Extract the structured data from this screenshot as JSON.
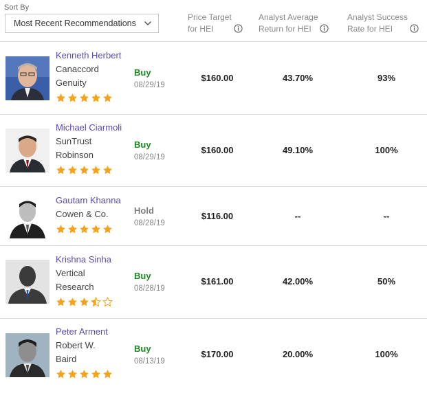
{
  "sort": {
    "label": "Sort By",
    "selected": "Most Recent Recommendations"
  },
  "columns": {
    "price_target": "Price Target for HEI",
    "avg_return": "Analyst Average Return for HEI",
    "success_rate": "Analyst Success Rate for HEI"
  },
  "icons": {
    "info": "info-circle-icon",
    "dropdown": "chevron-down-icon",
    "star": "star-icon"
  },
  "colors": {
    "name_link": "#5b4bb0",
    "buy": "#1d8a22",
    "hold": "#7d7d7d",
    "star": "#f4a31a"
  },
  "analysts": [
    {
      "name": "Kenneth Herbert",
      "firm_line1": "Canaccord",
      "firm_line2": "Genuity",
      "rating": "Buy",
      "date": "08/29/19",
      "price_target": "$160.00",
      "avg_return": "43.70%",
      "success_rate": "93%",
      "stars": 5
    },
    {
      "name": "Michael Ciarmoli",
      "firm_line1": "SunTrust",
      "firm_line2": "Robinson",
      "rating": "Buy",
      "date": "08/29/19",
      "price_target": "$160.00",
      "avg_return": "49.10%",
      "success_rate": "100%",
      "stars": 5
    },
    {
      "name": "Gautam Khanna",
      "firm_line1": "Cowen & Co.",
      "firm_line2": "",
      "rating": "Hold",
      "date": "08/28/19",
      "price_target": "$116.00",
      "avg_return": "--",
      "success_rate": "--",
      "stars": 5
    },
    {
      "name": "Krishna Sinha",
      "firm_line1": "Vertical",
      "firm_line2": "Research",
      "rating": "Buy",
      "date": "08/28/19",
      "price_target": "$161.00",
      "avg_return": "42.00%",
      "success_rate": "50%",
      "stars": 3.5
    },
    {
      "name": "Peter Arment",
      "firm_line1": "Robert W.",
      "firm_line2": "Baird",
      "rating": "Buy",
      "date": "08/13/19",
      "price_target": "$170.00",
      "avg_return": "20.00%",
      "success_rate": "100%",
      "stars": 5
    }
  ]
}
